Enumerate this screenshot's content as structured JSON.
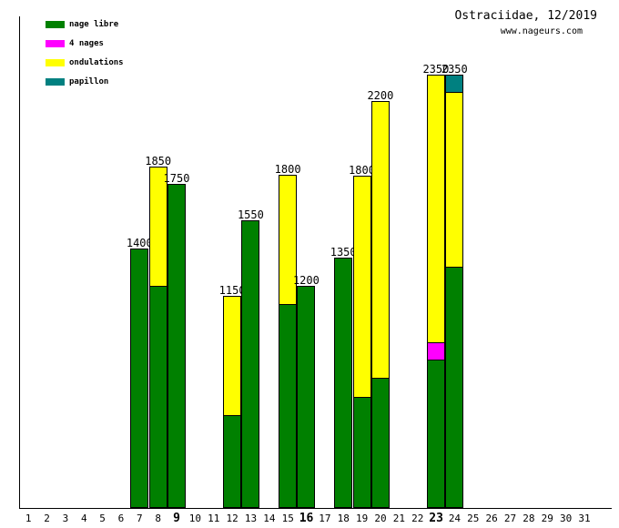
{
  "title": "Ostraciidae, 12/2019",
  "website": "www.nageurs.com",
  "legend": [
    {
      "key": "nage_libre",
      "label": "nage libre",
      "color": "#008000"
    },
    {
      "key": "quatre_nages",
      "label": "4 nages",
      "color": "#ff00ff"
    },
    {
      "key": "ondulations",
      "label": "ondulations",
      "color": "#ffff00"
    },
    {
      "key": "papillon",
      "label": "papillon",
      "color": "#008080"
    }
  ],
  "chart_data": {
    "type": "bar",
    "stacked": true,
    "title": "Ostraciidae, 12/2019",
    "annotation": "www.nageurs.com",
    "x_categories": [
      1,
      2,
      3,
      4,
      5,
      6,
      7,
      8,
      9,
      10,
      11,
      12,
      13,
      14,
      15,
      16,
      17,
      18,
      19,
      20,
      21,
      22,
      23,
      24,
      25,
      26,
      27,
      28,
      29,
      30,
      31
    ],
    "bold_x_labels": [
      9,
      16,
      23
    ],
    "segment_order_bottom_to_top": [
      "nage_libre",
      "quatre_nages",
      "ondulations",
      "papillon"
    ],
    "ylim": [
      0,
      2650
    ],
    "grid": false,
    "y_ticks": [],
    "legend_position": "top-left",
    "bars": [
      {
        "day": 7,
        "total": 1400,
        "label": "1400",
        "segments": [
          {
            "key": "nage_libre",
            "value": 1400
          }
        ]
      },
      {
        "day": 8,
        "total": 1850,
        "label": "1850",
        "segments": [
          {
            "key": "nage_libre",
            "value": 1200
          },
          {
            "key": "ondulations",
            "value": 650
          }
        ]
      },
      {
        "day": 9,
        "total": 1750,
        "label": "1750",
        "segments": [
          {
            "key": "nage_libre",
            "value": 1750
          }
        ]
      },
      {
        "day": 12,
        "total": 1150,
        "label": "1150",
        "segments": [
          {
            "key": "nage_libre",
            "value": 500
          },
          {
            "key": "ondulations",
            "value": 650
          }
        ]
      },
      {
        "day": 13,
        "total": 1550,
        "label": "1550",
        "segments": [
          {
            "key": "nage_libre",
            "value": 1550
          }
        ]
      },
      {
        "day": 15,
        "total": 1800,
        "label": "1800",
        "segments": [
          {
            "key": "nage_libre",
            "value": 1100
          },
          {
            "key": "ondulations",
            "value": 700
          }
        ]
      },
      {
        "day": 16,
        "total": 1200,
        "label": "1200",
        "segments": [
          {
            "key": "nage_libre",
            "value": 1200
          }
        ]
      },
      {
        "day": 18,
        "total": 1350,
        "label": "1350",
        "segments": [
          {
            "key": "nage_libre",
            "value": 1350
          }
        ]
      },
      {
        "day": 19,
        "total": 1800,
        "label": "1800",
        "segments": [
          {
            "key": "nage_libre",
            "value": 600
          },
          {
            "key": "ondulations",
            "value": 1200
          }
        ]
      },
      {
        "day": 20,
        "total": 2200,
        "label": "2200",
        "segments": [
          {
            "key": "nage_libre",
            "value": 700
          },
          {
            "key": "ondulations",
            "value": 1500
          }
        ]
      },
      {
        "day": 23,
        "total": 2350,
        "label": "2350",
        "segments": [
          {
            "key": "nage_libre",
            "value": 800
          },
          {
            "key": "quatre_nages",
            "value": 100
          },
          {
            "key": "ondulations",
            "value": 1450
          }
        ]
      },
      {
        "day": 24,
        "total": 2350,
        "label": "2350",
        "segments": [
          {
            "key": "nage_libre",
            "value": 1300
          },
          {
            "key": "ondulations",
            "value": 950
          },
          {
            "key": "papillon",
            "value": 100
          }
        ]
      }
    ]
  }
}
